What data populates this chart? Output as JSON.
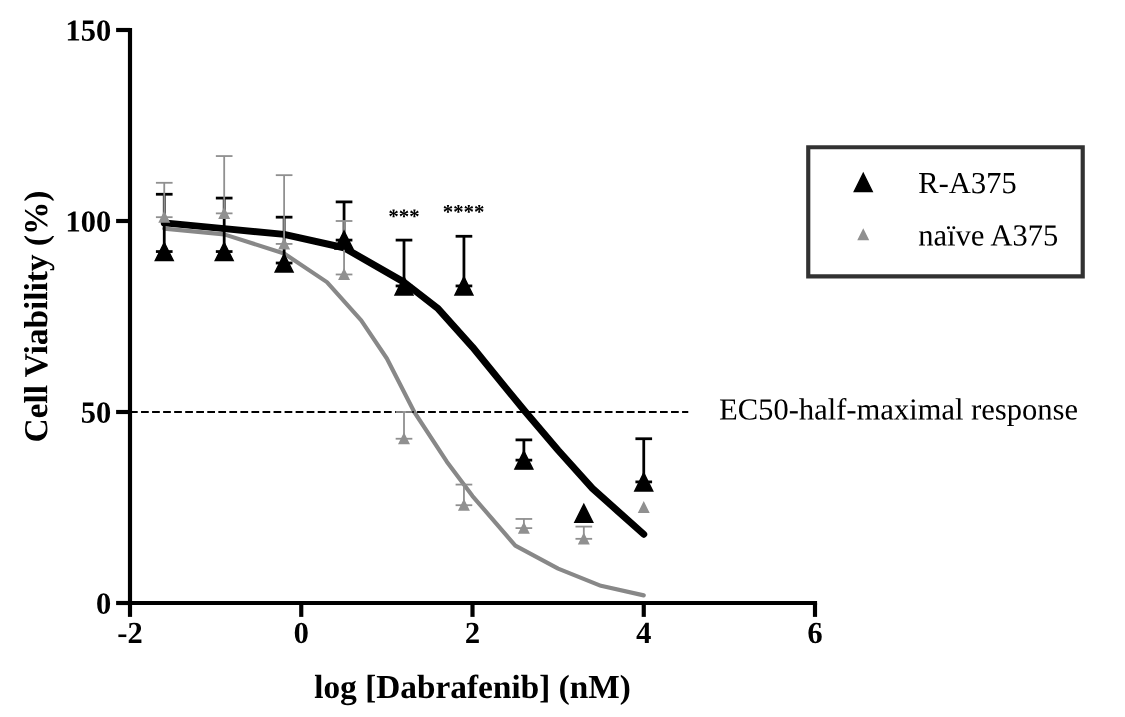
{
  "chart_data": {
    "type": "scatter",
    "xlabel": "log [Dabrafenib] (nM)",
    "ylabel": "Cell Viability (%)",
    "xlim": [
      -2,
      6
    ],
    "xticks": [
      -2,
      0,
      2,
      4,
      6
    ],
    "ylim": [
      0,
      150
    ],
    "yticks": [
      0,
      50,
      100,
      150
    ],
    "grid": false,
    "legend": "top right",
    "marker": "triangle",
    "x": [
      -1.6,
      -0.9,
      -0.2,
      0.5,
      1.2,
      1.9,
      2.6,
      3.3,
      4.0
    ],
    "series": [
      {
        "name": "R-A375",
        "color": "#000000",
        "values": [
          92,
          92,
          89,
          95,
          83,
          83,
          37.4,
          23.5,
          31.7
        ],
        "errors": [
          [
            92,
            107
          ],
          [
            92,
            106
          ],
          [
            89,
            101
          ],
          [
            95,
            105
          ],
          [
            83,
            95
          ],
          [
            83,
            96
          ],
          [
            37.4,
            42.7
          ],
          null,
          [
            31.7,
            43
          ]
        ]
      },
      {
        "name": "naïve A375",
        "color": "#909090",
        "values": [
          101,
          102,
          94,
          86,
          43,
          25.6,
          19.6,
          16.8,
          25
        ],
        "errors": [
          [
            101,
            110
          ],
          [
            102,
            117
          ],
          [
            94,
            112
          ],
          [
            86,
            100
          ],
          [
            43,
            50
          ],
          [
            25.6,
            31
          ],
          [
            19.6,
            22
          ],
          [
            16.8,
            20
          ],
          null
        ]
      },
      {
        "type": "line",
        "color": "#000000",
        "marker": "none",
        "x": [
          -1.6,
          -0.9,
          -0.2,
          0.5,
          1.2,
          1.6,
          2.0,
          2.4,
          2.62,
          3.0,
          3.4,
          3.7,
          4.0
        ],
        "values": [
          99.5,
          98,
          96.5,
          93,
          84,
          77,
          67,
          56,
          50,
          40,
          30,
          24,
          18
        ]
      },
      {
        "type": "line",
        "color": "#888888",
        "marker": "none",
        "x": [
          -1.6,
          -0.9,
          -0.2,
          0.3,
          0.7,
          1.0,
          1.32,
          1.7,
          2.0,
          2.5,
          3.0,
          3.5,
          4.0
        ],
        "values": [
          98,
          96.5,
          91.5,
          84,
          74,
          64,
          50,
          37,
          28,
          15,
          9,
          4.5,
          2
        ]
      }
    ],
    "ref_lines": [
      {
        "axis": "y",
        "value": 50,
        "label": "EC50-half-maximal response",
        "color": "#000000",
        "line_style": "dashed"
      }
    ],
    "annotations": [
      "***",
      "****"
    ]
  }
}
